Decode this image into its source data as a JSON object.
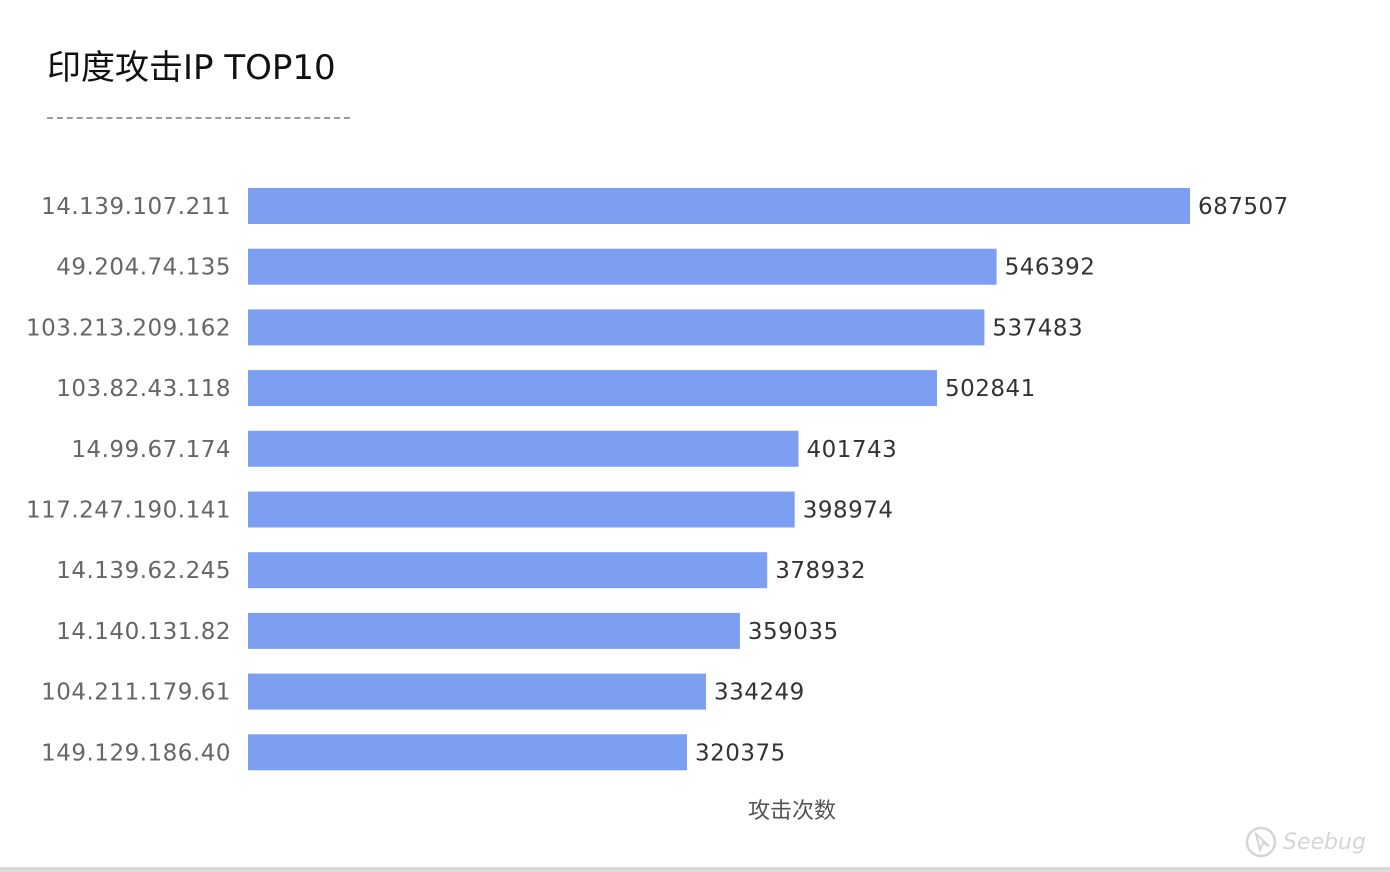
{
  "chart_data": {
    "type": "bar",
    "orientation": "horizontal",
    "title": "印度攻击IP TOP10",
    "xlabel": "攻击次数",
    "ylabel": "",
    "categories": [
      "14.139.107.211",
      "49.204.74.135",
      "103.213.209.162",
      "103.82.43.118",
      "14.99.67.174",
      "117.247.190.141",
      "14.139.62.245",
      "14.140.131.82",
      "104.211.179.61",
      "149.129.186.40"
    ],
    "values": [
      687507,
      546392,
      537483,
      502841,
      401743,
      398974,
      378932,
      359035,
      334249,
      320375
    ],
    "xlim": [
      0,
      687507
    ],
    "grid": false,
    "data_labels": true,
    "bar_color": "#7d9ff2"
  },
  "watermark": {
    "text": "Seebug",
    "icon": "seebug-logo-icon"
  }
}
